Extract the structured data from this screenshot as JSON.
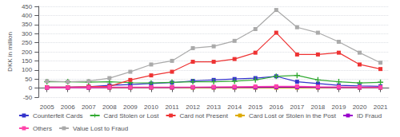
{
  "chart_data": {
    "type": "line",
    "ylabel": "DKK in million",
    "x": [
      2005,
      2006,
      2007,
      2008,
      2009,
      2010,
      2011,
      2012,
      2013,
      2014,
      2015,
      2016,
      2017,
      2018,
      2019,
      2020,
      2021
    ],
    "xlim": [
      2004.6,
      2021.4
    ],
    "xticks": [
      2005,
      2006,
      2007,
      2008,
      2009,
      2010,
      2011,
      2012,
      2013,
      2014,
      2015,
      2016,
      2017,
      2018,
      2019,
      2020,
      2021
    ],
    "ylim": [
      -50,
      450
    ],
    "yticks": [
      -50,
      0,
      50,
      100,
      150,
      200,
      250,
      300,
      350,
      400,
      450
    ],
    "grid": true,
    "legend": "bottom",
    "series": [
      {
        "name": "Counterfeit Cards",
        "color": "#3333cc",
        "marker": "square",
        "values": [
          5,
          5,
          8,
          15,
          20,
          25,
          30,
          40,
          45,
          50,
          55,
          65,
          35,
          25,
          15,
          12,
          10
        ]
      },
      {
        "name": "Card Stolen or Lost",
        "color": "#33aa33",
        "marker": "plus",
        "values": [
          35,
          35,
          33,
          35,
          30,
          28,
          32,
          35,
          35,
          38,
          45,
          65,
          70,
          45,
          35,
          28,
          32
        ]
      },
      {
        "name": "Card not Present",
        "color": "#ee3333",
        "marker": "square",
        "values": [
          5,
          5,
          8,
          10,
          45,
          70,
          90,
          145,
          145,
          160,
          195,
          305,
          185,
          185,
          195,
          130,
          105
        ]
      },
      {
        "name": "Card Lost or Stolen in the Post",
        "color": "#ddaa00",
        "marker": "square",
        "values": [
          2,
          2,
          2,
          2,
          2,
          2,
          2,
          2,
          2,
          2,
          2,
          2,
          2,
          2,
          2,
          2,
          2
        ]
      },
      {
        "name": "ID Fraud",
        "color": "#9900cc",
        "marker": "square",
        "values": [
          2,
          2,
          2,
          3,
          3,
          3,
          3,
          4,
          4,
          4,
          4,
          5,
          5,
          4,
          3,
          3,
          3
        ]
      },
      {
        "name": "Others",
        "color": "#ff44aa",
        "marker": "square",
        "values": [
          3,
          3,
          4,
          5,
          5,
          5,
          6,
          6,
          7,
          8,
          9,
          10,
          10,
          8,
          7,
          6,
          5
        ]
      },
      {
        "name": "Value Lost to Fraud",
        "color": "#aaaaaa",
        "marker": "square",
        "values": [
          38,
          35,
          38,
          55,
          90,
          130,
          150,
          220,
          230,
          260,
          325,
          430,
          335,
          305,
          255,
          195,
          140
        ]
      }
    ]
  }
}
